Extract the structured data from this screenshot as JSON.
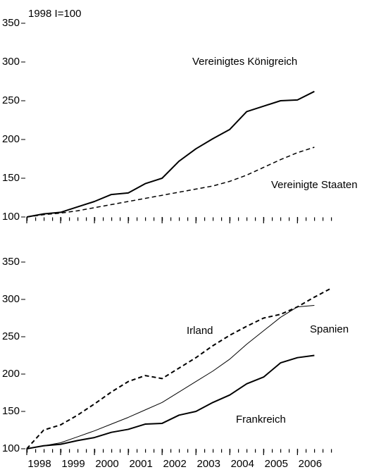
{
  "chart_data": [
    {
      "type": "line",
      "ylabel": "1998 I=100",
      "x": [
        1998,
        1998.5,
        1999,
        1999.5,
        2000,
        2000.5,
        2001,
        2001.5,
        2002,
        2002.5,
        2003,
        2003.5,
        2004,
        2004.5,
        2005,
        2005.5,
        2006,
        2006.5,
        2007
      ],
      "series": [
        {
          "name": "Vereinigtes Königreich",
          "color": "#000000",
          "style": "solid",
          "width": 2,
          "values": [
            100,
            104,
            106,
            113,
            120,
            129,
            131,
            143,
            150,
            172,
            188,
            201,
            213,
            236,
            243,
            250,
            251,
            262,
            null
          ]
        },
        {
          "name": "Vereinigte Staaten",
          "color": "#000000",
          "style": "dashed",
          "width": 1.5,
          "values": [
            100,
            103,
            105,
            108,
            112,
            116,
            120,
            124,
            128,
            132,
            136,
            140,
            146,
            154,
            164,
            174,
            183,
            190,
            null
          ]
        }
      ],
      "xlim": [
        1998,
        2007.2
      ],
      "xticks": [
        1998,
        1999,
        2000,
        2001,
        2002,
        2003,
        2004,
        2005,
        2006
      ],
      "show_xtick_labels": false,
      "ylim": [
        100,
        350
      ],
      "yticks": [
        100,
        150,
        200,
        250,
        300,
        350
      ]
    },
    {
      "type": "line",
      "x": [
        1998,
        1998.5,
        1999,
        1999.5,
        2000,
        2000.5,
        2001,
        2001.5,
        2002,
        2002.5,
        2003,
        2003.5,
        2004,
        2004.5,
        2005,
        2005.5,
        2006,
        2006.5,
        2007
      ],
      "series": [
        {
          "name": "Irland",
          "color": "#000000",
          "style": "dashed",
          "width": 2,
          "values": [
            100,
            125,
            132,
            145,
            160,
            176,
            190,
            198,
            194,
            208,
            222,
            238,
            252,
            264,
            275,
            280,
            290,
            303,
            315
          ]
        },
        {
          "name": "Spanien",
          "color": "#000000",
          "style": "solid",
          "width": 1,
          "values": [
            100,
            104,
            108,
            116,
            124,
            133,
            142,
            152,
            162,
            176,
            190,
            204,
            220,
            240,
            258,
            276,
            290,
            292,
            null
          ]
        },
        {
          "name": "Frankreich",
          "color": "#000000",
          "style": "solid",
          "width": 2,
          "values": [
            100,
            104,
            106,
            111,
            115,
            122,
            126,
            133,
            134,
            145,
            150,
            162,
            172,
            187,
            196,
            215,
            222,
            225,
            null
          ]
        }
      ],
      "xlim": [
        1998,
        2007.2
      ],
      "xticks": [
        1998,
        1999,
        2000,
        2001,
        2002,
        2003,
        2004,
        2005,
        2006
      ],
      "show_xtick_labels": true,
      "ylim": [
        100,
        350
      ],
      "yticks": [
        100,
        150,
        200,
        250,
        300,
        350
      ]
    }
  ]
}
